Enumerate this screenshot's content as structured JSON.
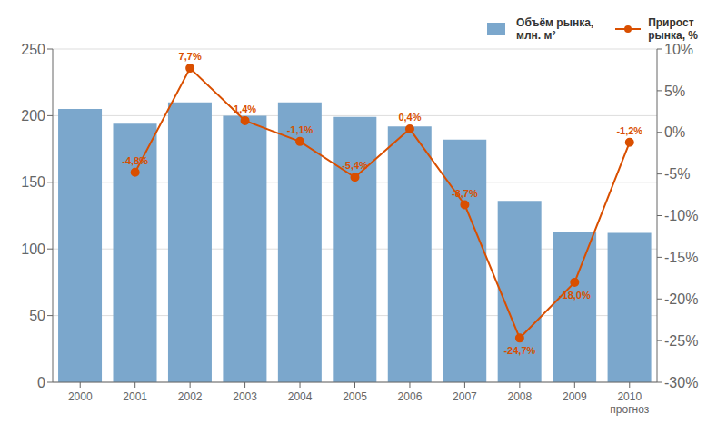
{
  "chart_data": {
    "type": "bar",
    "categories": [
      "2000",
      "2001",
      "2002",
      "2003",
      "2004",
      "2005",
      "2006",
      "2007",
      "2008",
      "2009",
      "2010\nпрогноз"
    ],
    "series": [
      {
        "name": "Объём рынка,\nмлн. м²",
        "type": "bar",
        "color": "#7ba7cc",
        "values": [
          205,
          194,
          210,
          200,
          210,
          199,
          192,
          182,
          136,
          113,
          112
        ]
      },
      {
        "name": "Прирост\nрынка, %",
        "type": "line",
        "axis": "y2",
        "color": "#d94f00",
        "marker": "circle",
        "data_labels": true,
        "values": [
          null,
          -4.8,
          7.7,
          1.4,
          -1.1,
          -5.4,
          0.4,
          -8.7,
          -24.7,
          -18.0,
          -1.2
        ],
        "value_labels": [
          null,
          "-4,8%",
          "7,7%",
          "1,4%",
          "-1,1%",
          "-5,4%",
          "0,4%",
          "-8,7%",
          "-24,7%",
          "-18,0%",
          "-1,2%"
        ]
      }
    ],
    "ylim": [
      0,
      250
    ],
    "yticks": [
      0,
      50,
      100,
      150,
      200,
      250
    ],
    "y2lim": [
      -30,
      10
    ],
    "y2ticks": [
      {
        "value": 10,
        "label": "10%"
      },
      {
        "value": 5,
        "label": "5%"
      },
      {
        "value": 0,
        "label": "0%"
      },
      {
        "value": -5,
        "label": "-5%"
      },
      {
        "value": -10,
        "label": "-10%"
      },
      {
        "value": -15,
        "label": "-15%"
      },
      {
        "value": -20,
        "label": "-20%"
      },
      {
        "value": -25,
        "label": "-25%"
      },
      {
        "value": -30,
        "label": "-30%"
      }
    ],
    "grid": true,
    "legend": "upper right"
  }
}
